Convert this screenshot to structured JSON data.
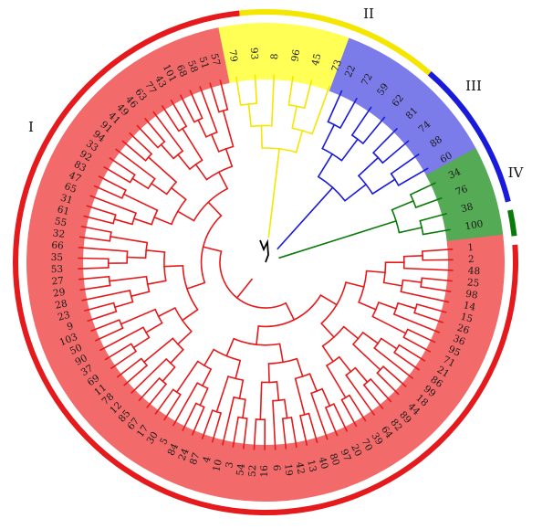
{
  "colors": {
    "I": "#e41a1c",
    "II": "#f5e600",
    "III": "#1a1adb",
    "IV": "#0a7a0a",
    "I_shade": "#f26a6a",
    "II_shade": "#ffff55",
    "III_shade": "#7b7bea",
    "IV_shade": "#55aa55",
    "root": "#000000"
  },
  "clades": [
    {
      "label": "II",
      "leaves": [
        "79",
        "93",
        "8",
        "96",
        "45",
        "73"
      ]
    },
    {
      "label": "III",
      "leaves": [
        "22",
        "72",
        "59",
        "62",
        "81",
        "74",
        "88",
        "60"
      ]
    },
    {
      "label": "IV",
      "leaves": [
        "34",
        "76",
        "38",
        "100"
      ]
    },
    {
      "label": "I",
      "leaves": [
        "1",
        "2",
        "48",
        "25",
        "98",
        "14",
        "15",
        "26",
        "36",
        "95",
        "71",
        "21",
        "86",
        "99",
        "18",
        "44",
        "89",
        "82",
        "64",
        "39",
        "70",
        "20",
        "97",
        "80",
        "40",
        "13",
        "42",
        "19",
        "6",
        "16",
        "52",
        "54",
        "3",
        "10",
        "4",
        "87",
        "24",
        "84",
        "5",
        "30",
        "17",
        "67",
        "85",
        "12",
        "78",
        "11",
        "69",
        "37",
        "90",
        "50",
        "103",
        "9",
        "23",
        "28",
        "29",
        "27",
        "53",
        "35",
        "66",
        "32",
        "55",
        "61",
        "31",
        "65",
        "47",
        "83",
        "92",
        "33",
        "94",
        "91",
        "41",
        "49",
        "46",
        "63",
        "77",
        "43",
        "101",
        "68",
        "58",
        "51",
        "57"
      ]
    }
  ]
}
